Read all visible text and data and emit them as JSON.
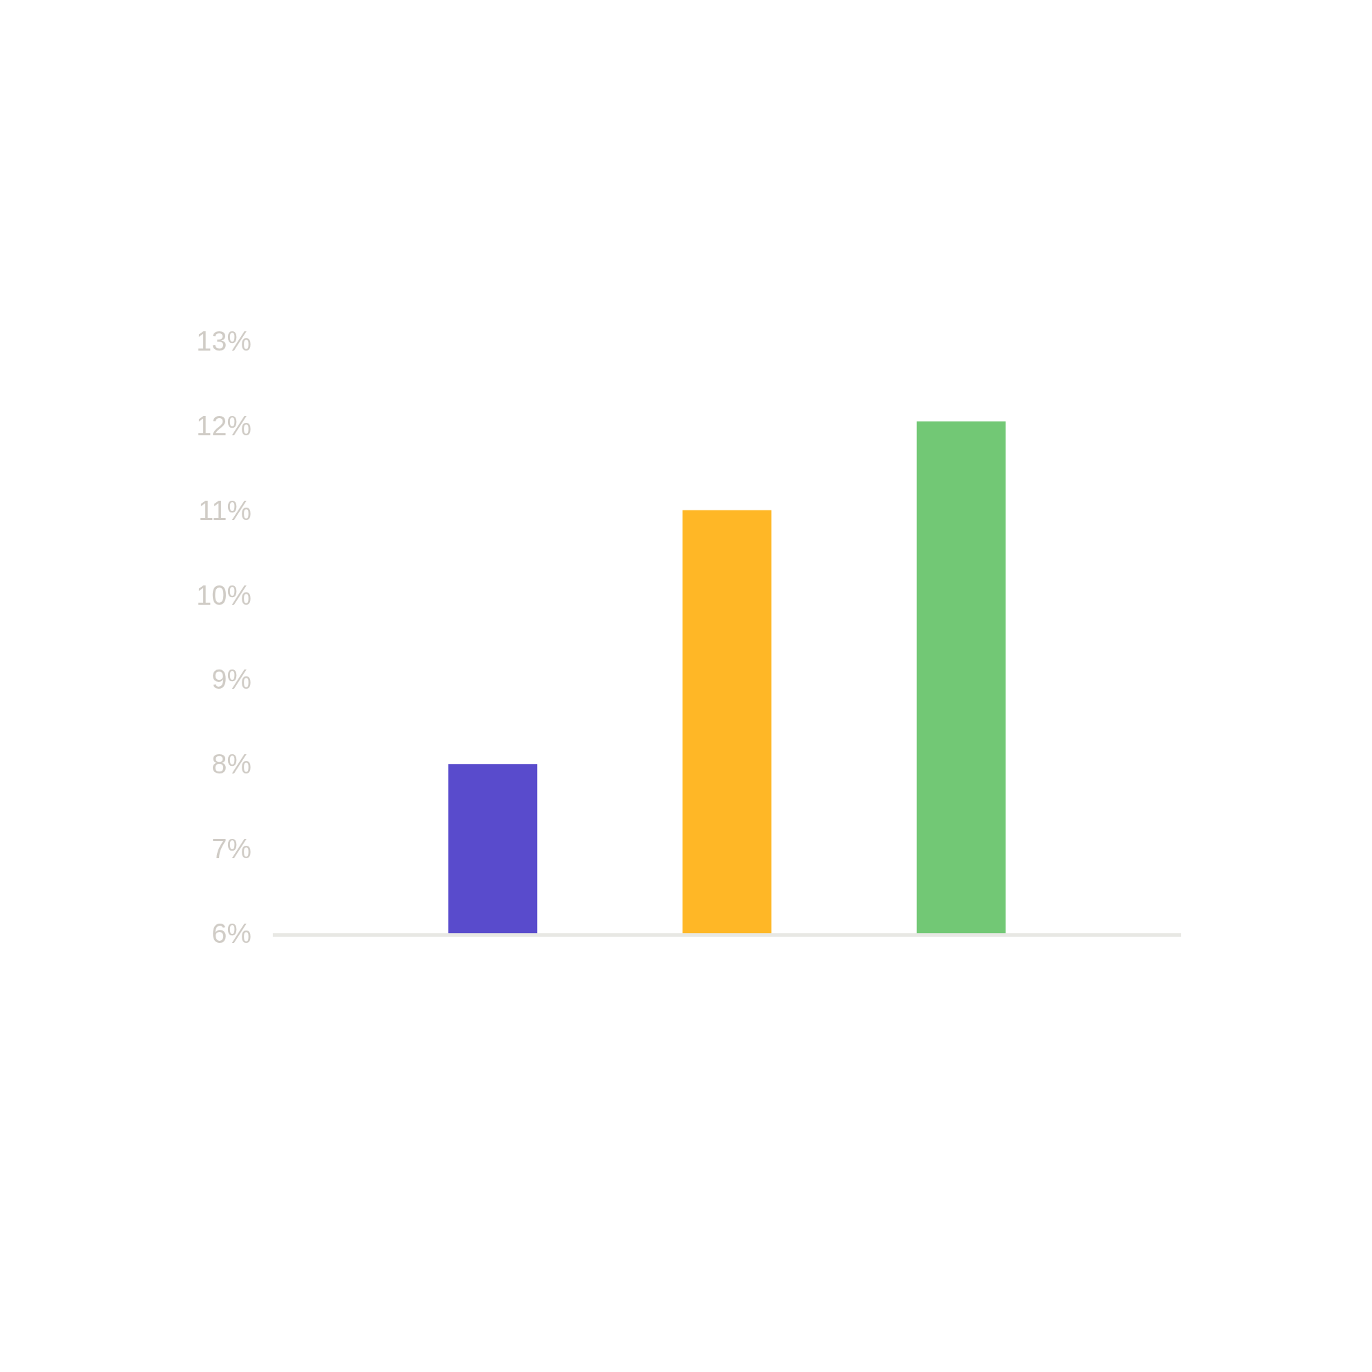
{
  "chart_data": {
    "type": "bar",
    "categories": [
      null,
      null,
      null
    ],
    "values": [
      8.0,
      11.0,
      12.05
    ],
    "colors": [
      "#594bcc",
      "#ffb726",
      "#72c875"
    ],
    "ylim": [
      6,
      13
    ],
    "yticks": [
      {
        "value": 6,
        "label": "6%"
      },
      {
        "value": 7,
        "label": "7%"
      },
      {
        "value": 8,
        "label": "8%"
      },
      {
        "value": 9,
        "label": "9%"
      },
      {
        "value": 10,
        "label": "10%"
      },
      {
        "value": 11,
        "label": "11%"
      },
      {
        "value": 12,
        "label": "12%"
      },
      {
        "value": 13,
        "label": "13%"
      }
    ],
    "tick_labels": "y"
  }
}
